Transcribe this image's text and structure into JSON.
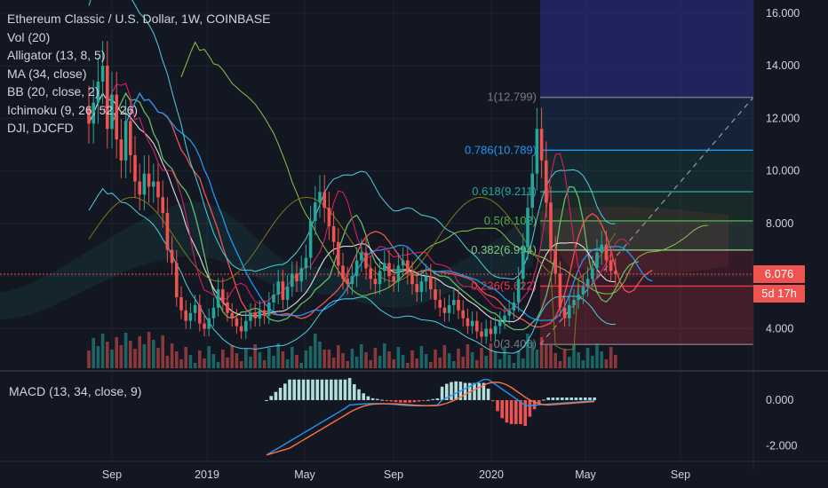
{
  "header": {
    "title": "Ethereum Classic / U.S. Dollar, 1W, COINBASE",
    "indicators": [
      "Vol (20)",
      "Alligator (13, 8, 5)",
      "MA (34, close)",
      "BB (20, close, 2)",
      "Ichimoku (9, 26, 52, 26)",
      "DJI, DJCFD"
    ]
  },
  "macd": {
    "label": "MACD (13, 34, close, 9)"
  },
  "tags": {
    "last_price": "6.076",
    "countdown": "5d 17h"
  },
  "colors": {
    "background": "#131722",
    "up": "#26a69a",
    "down": "#ef5350",
    "grid": "#1e222d",
    "axis_text": "#d1d4dc"
  },
  "chart_data": {
    "type": "candlestick",
    "symbol": "ETCUSD",
    "interval": "1W",
    "exchange": "COINBASE",
    "x_ticks": [
      "Sep",
      "2019",
      "May",
      "Sep",
      "2020",
      "May",
      "Sep"
    ],
    "price_axis": {
      "ticks": [
        "16.000",
        "14.000",
        "12.000",
        "10.000",
        "8.000",
        "6.000",
        "4.000"
      ],
      "range": [
        2.5,
        16.5
      ]
    },
    "macd_axis": {
      "ticks": [
        "0.000",
        "-2.000"
      ],
      "range": [
        -2.6,
        1.2
      ]
    },
    "last_price": 6.076,
    "fibonacci": [
      {
        "level": "1",
        "price": 12.799,
        "label": "1(12.799)",
        "color": "#787b86"
      },
      {
        "level": "0.786",
        "price": 10.789,
        "label": "0.786(10.789)",
        "color": "#2196f3"
      },
      {
        "level": "0.618",
        "price": 9.211,
        "label": "0.618(9.211)",
        "color": "#26a69a"
      },
      {
        "level": "0.5",
        "price": 8.102,
        "label": "0.5(8.102)",
        "color": "#4caf50"
      },
      {
        "level": "0.382",
        "price": 6.994,
        "label": "0.382(6.994)",
        "color": "#81c784"
      },
      {
        "level": "0.236",
        "price": 5.622,
        "label": "0.236(5.622)",
        "color": "#f23645"
      },
      {
        "level": "0",
        "price": 3.406,
        "label": "0(3.406)",
        "color": "#787b86"
      }
    ]
  }
}
